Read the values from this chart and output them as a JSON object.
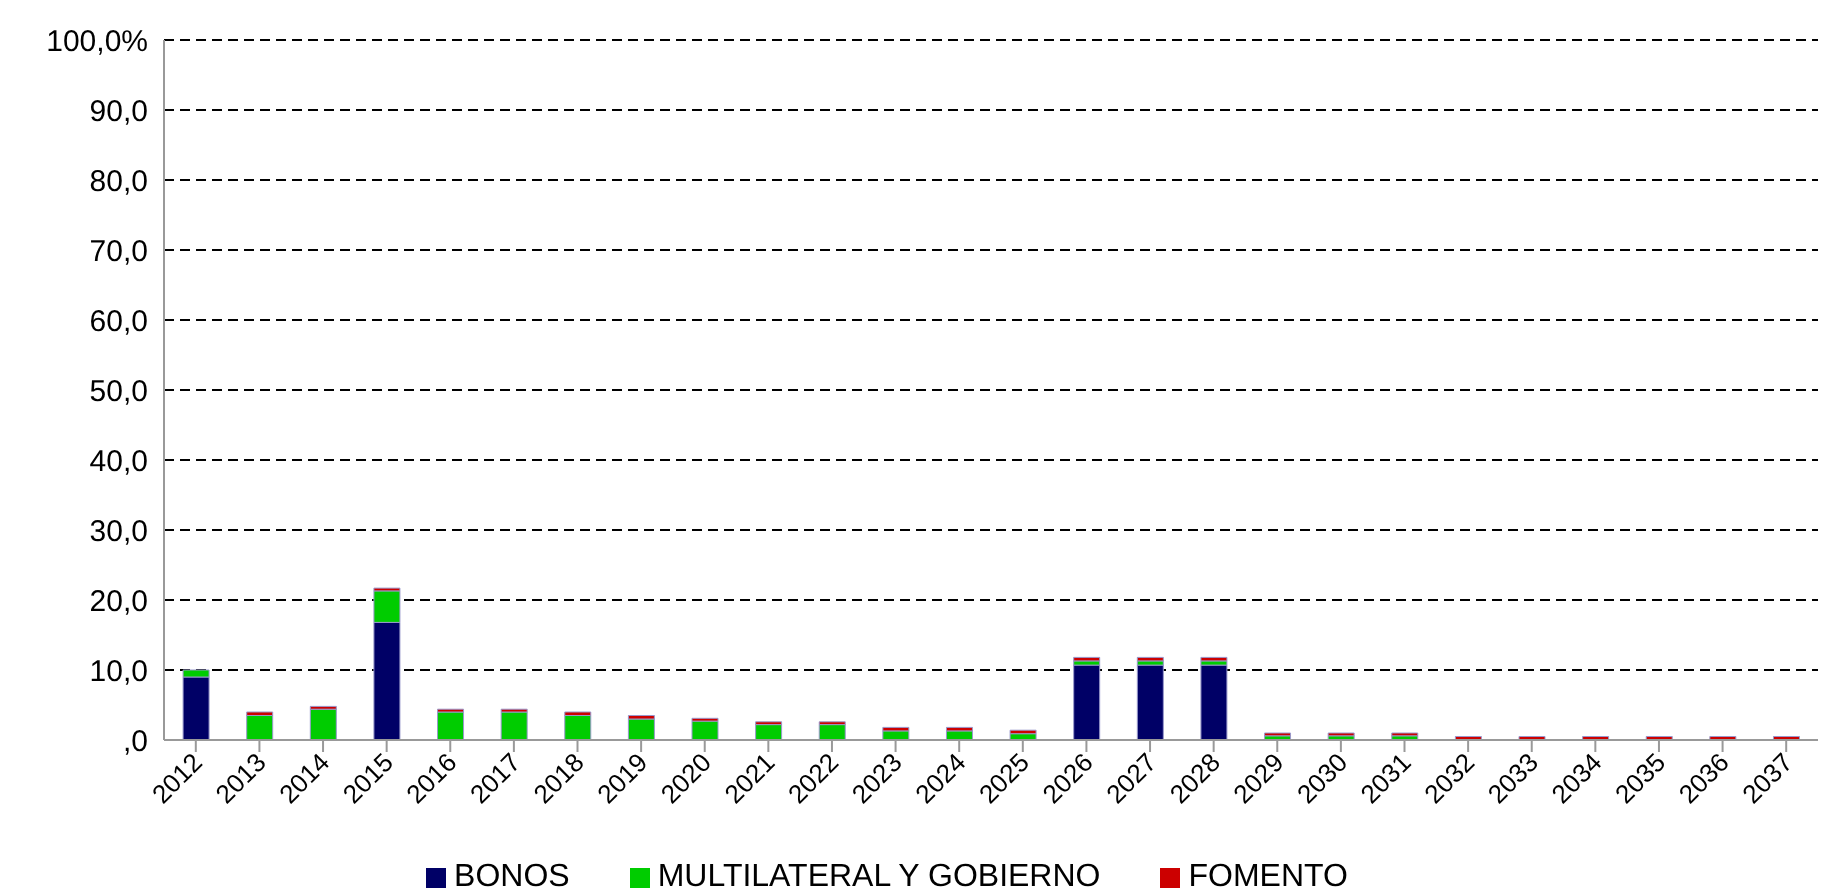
{
  "chart_data": {
    "type": "bar",
    "stacked": true,
    "categories": [
      "2012",
      "2013",
      "2014",
      "2015",
      "2016",
      "2017",
      "2018",
      "2019",
      "2020",
      "2021",
      "2022",
      "2023",
      "2024",
      "2025",
      "2026",
      "2027",
      "2028",
      "2029",
      "2030",
      "2031",
      "2032",
      "2033",
      "2034",
      "2035",
      "2036",
      "2037"
    ],
    "series": [
      {
        "name": "BONOS",
        "color": "#000066",
        "values": [
          9.0,
          0,
          0,
          16.8,
          0,
          0,
          0,
          0,
          0,
          0,
          0,
          0,
          0,
          0,
          10.7,
          10.7,
          10.7,
          0,
          0,
          0,
          0,
          0,
          0,
          0,
          0,
          0
        ]
      },
      {
        "name": "MULTILATERAL Y GOBIERNO",
        "color": "#00cc00",
        "values": [
          1.0,
          3.5,
          4.4,
          4.5,
          4.0,
          4.0,
          3.5,
          3.0,
          2.7,
          2.2,
          2.2,
          1.3,
          1.3,
          0.9,
          0.6,
          0.6,
          0.6,
          0.6,
          0.6,
          0.6,
          0,
          0,
          0,
          0,
          0,
          0
        ]
      },
      {
        "name": "FOMENTO",
        "color": "#cc0000",
        "values": [
          0,
          0.5,
          0.4,
          0.4,
          0.4,
          0.4,
          0.5,
          0.5,
          0.4,
          0.4,
          0.4,
          0.5,
          0.5,
          0.5,
          0.5,
          0.5,
          0.5,
          0.4,
          0.4,
          0.4,
          0.5,
          0.5,
          0.5,
          0.5,
          0.5,
          0.5
        ]
      }
    ],
    "ylim": [
      0,
      100
    ],
    "yticks": [
      {
        "value": 0,
        "label": ",0"
      },
      {
        "value": 10,
        "label": "10,0"
      },
      {
        "value": 20,
        "label": "20,0"
      },
      {
        "value": 30,
        "label": "30,0"
      },
      {
        "value": 40,
        "label": "40,0"
      },
      {
        "value": 50,
        "label": "50,0"
      },
      {
        "value": 60,
        "label": "60,0"
      },
      {
        "value": 70,
        "label": "70,0"
      },
      {
        "value": 80,
        "label": "80,0"
      },
      {
        "value": 90,
        "label": "90,0"
      },
      {
        "value": 100,
        "label": "100,0%"
      }
    ],
    "grid": "y",
    "legend": "bottom"
  }
}
